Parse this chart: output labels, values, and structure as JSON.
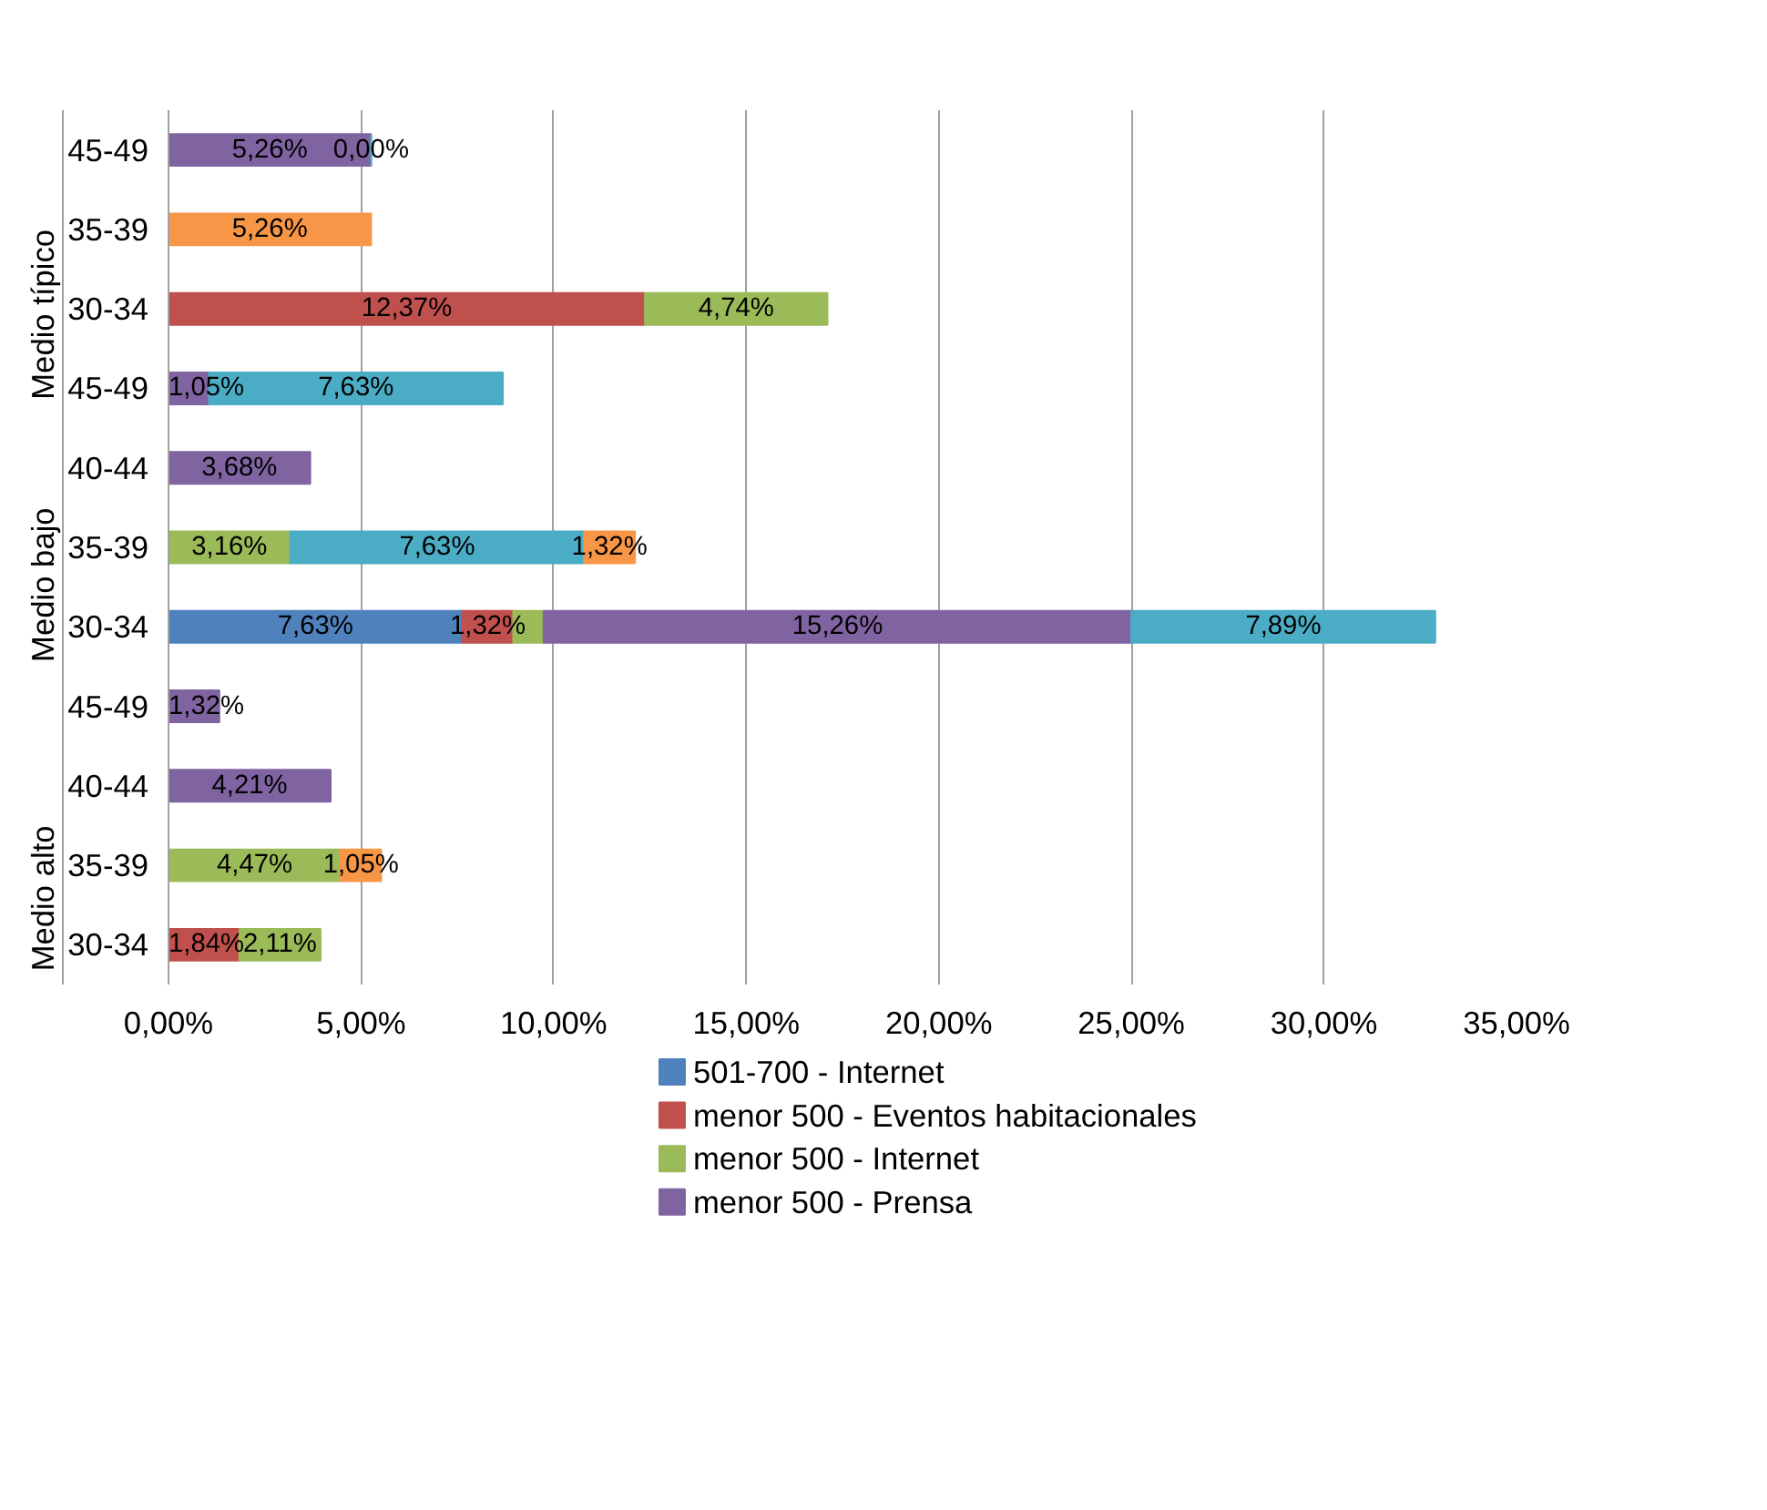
{
  "chart_data": {
    "type": "bar",
    "orientation": "horizontal",
    "stacked": true,
    "categories": [
      [
        "Medio típico",
        "45-49"
      ],
      [
        null,
        "35-39"
      ],
      [
        null,
        "30-34"
      ],
      [
        "Medio bajo",
        "45-49"
      ],
      [
        null,
        "40-44"
      ],
      [
        null,
        "35-39"
      ],
      [
        null,
        "30-34"
      ],
      [
        "Medio alto",
        "45-49"
      ],
      [
        null,
        "40-44"
      ],
      [
        null,
        "35-39"
      ],
      [
        null,
        "30-34"
      ]
    ],
    "series": [
      {
        "name": "501-700 - Internet",
        "color": "#4f81bd",
        "values": [
          null,
          null,
          null,
          null,
          null,
          null,
          7.63,
          null,
          null,
          null,
          null
        ],
        "value_labels": [
          null,
          null,
          null,
          null,
          null,
          null,
          "7,63%",
          null,
          null,
          null,
          null
        ]
      },
      {
        "name": "menor 500 - Eventos habitacionales",
        "color": "#c0504d",
        "values": [
          null,
          null,
          12.37,
          null,
          null,
          null,
          1.32,
          null,
          null,
          null,
          1.84
        ],
        "value_labels": [
          null,
          null,
          "12,37%",
          null,
          null,
          null,
          "1,32%",
          null,
          null,
          null,
          "1,84%"
        ]
      },
      {
        "name": "menor 500 - Internet",
        "color": "#9bbb59",
        "values": [
          null,
          null,
          4.74,
          null,
          null,
          3.16,
          0.79,
          null,
          null,
          4.47,
          2.11
        ],
        "value_labels": [
          null,
          null,
          "4,74%",
          null,
          null,
          "3,16%",
          null,
          null,
          null,
          "4,47%",
          "2,11%"
        ]
      },
      {
        "name": "menor 500 - Prensa",
        "color": "#8064a2",
        "values": [
          5.26,
          null,
          null,
          1.05,
          3.68,
          null,
          15.26,
          1.32,
          4.21,
          null,
          null
        ],
        "value_labels": [
          "5,26%",
          null,
          null,
          "1,05%",
          "3,68%",
          null,
          "15,26%",
          "1,32%",
          "4,21%",
          null,
          null
        ]
      },
      {
        "color": "#4bacc6",
        "values": [
          0,
          null,
          null,
          7.63,
          null,
          7.63,
          7.89,
          null,
          null,
          null,
          null
        ],
        "value_labels": [
          "0,00%",
          null,
          null,
          "7,63%",
          null,
          "7,63%",
          "7,89%",
          null,
          null,
          null,
          null
        ]
      },
      {
        "color": "#f79646",
        "values": [
          null,
          5.26,
          null,
          null,
          null,
          1.32,
          null,
          null,
          null,
          1.05,
          null
        ],
        "value_labels": [
          null,
          "5,26%",
          null,
          null,
          null,
          "1,32%",
          null,
          null,
          null,
          "1,05%",
          null
        ]
      }
    ],
    "xlim": [
      0,
      35
    ],
    "xticks": [
      {
        "value": 0,
        "label": "0,00%"
      },
      {
        "value": 5,
        "label": "5,00%"
      },
      {
        "value": 10,
        "label": "10,00%"
      },
      {
        "value": 15,
        "label": "15,00%"
      },
      {
        "value": 20,
        "label": "20,00%"
      },
      {
        "value": 25,
        "label": "25,00%"
      },
      {
        "value": 30,
        "label": "30,00%"
      },
      {
        "value": 35,
        "label": "35,00%"
      }
    ],
    "grid": "x",
    "legend": "bottom"
  }
}
